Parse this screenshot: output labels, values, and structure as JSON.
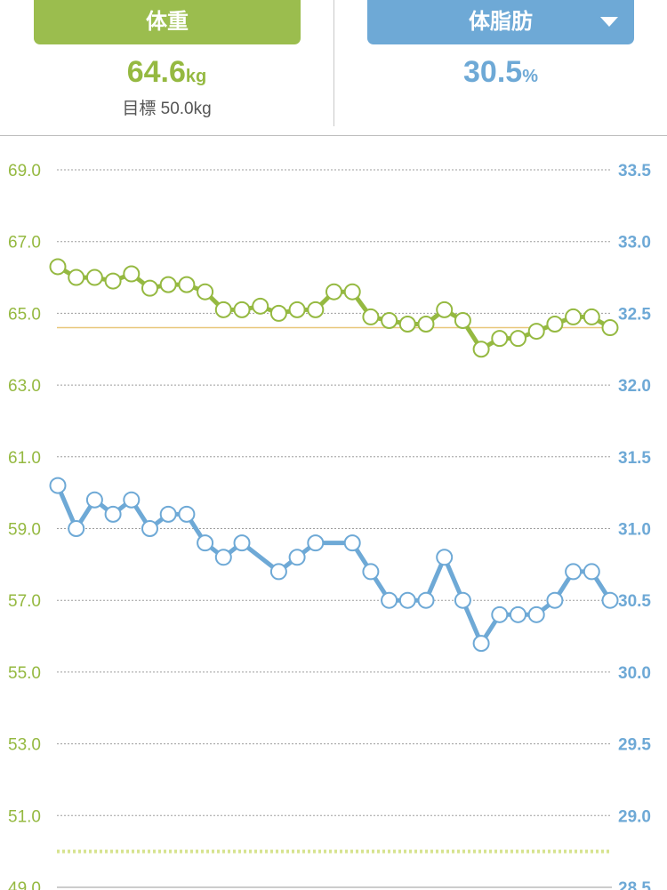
{
  "header": {
    "left_tab": "体重",
    "weight_value": "64.6",
    "weight_unit": "kg",
    "goal_label": "目標",
    "goal_value": "50.0kg",
    "right_tab": "体脂肪",
    "fat_value": "30.5",
    "fat_unit": "%"
  },
  "colors": {
    "weight": "#95b941",
    "fat": "#6ea9d6",
    "target_line": "#e8c77a",
    "goal_line": "#d6e38f"
  },
  "chart_data": {
    "type": "line",
    "left_axis": {
      "ticks": [
        "69.0",
        "67.0",
        "65.0",
        "63.0",
        "61.0",
        "59.0",
        "57.0",
        "55.0",
        "53.0",
        "51.0",
        "49.0"
      ],
      "ylim": [
        49,
        69
      ]
    },
    "right_axis": {
      "ticks": [
        "33.5",
        "33.0",
        "32.5",
        "32.0",
        "31.5",
        "31.0",
        "30.5",
        "30.0",
        "29.5",
        "29.0",
        "28.5"
      ],
      "ylim": [
        28.5,
        33.5
      ]
    },
    "grid": true,
    "reference_lines": {
      "current_weight": 64.6,
      "goal_weight": 50.0
    },
    "series": [
      {
        "axis": "left",
        "values": [
          66.3,
          66.0,
          66.0,
          65.9,
          66.1,
          65.7,
          65.8,
          65.8,
          65.6,
          65.1,
          65.1,
          65.2,
          65.0,
          65.1,
          65.1,
          65.6,
          65.6,
          64.9,
          64.8,
          64.7,
          64.7,
          65.1,
          64.8,
          64.0,
          64.3,
          64.3,
          64.5,
          64.7,
          64.9,
          64.9,
          64.6
        ]
      },
      {
        "axis": "right",
        "values": [
          31.3,
          31.0,
          31.2,
          31.1,
          31.2,
          31.0,
          31.1,
          31.1,
          30.9,
          30.8,
          30.9,
          null,
          30.7,
          30.8,
          30.9,
          null,
          30.9,
          30.7,
          30.5,
          30.5,
          30.5,
          30.8,
          30.5,
          30.2,
          30.4,
          30.4,
          30.4,
          30.5,
          30.7,
          30.7,
          30.5
        ]
      }
    ]
  }
}
